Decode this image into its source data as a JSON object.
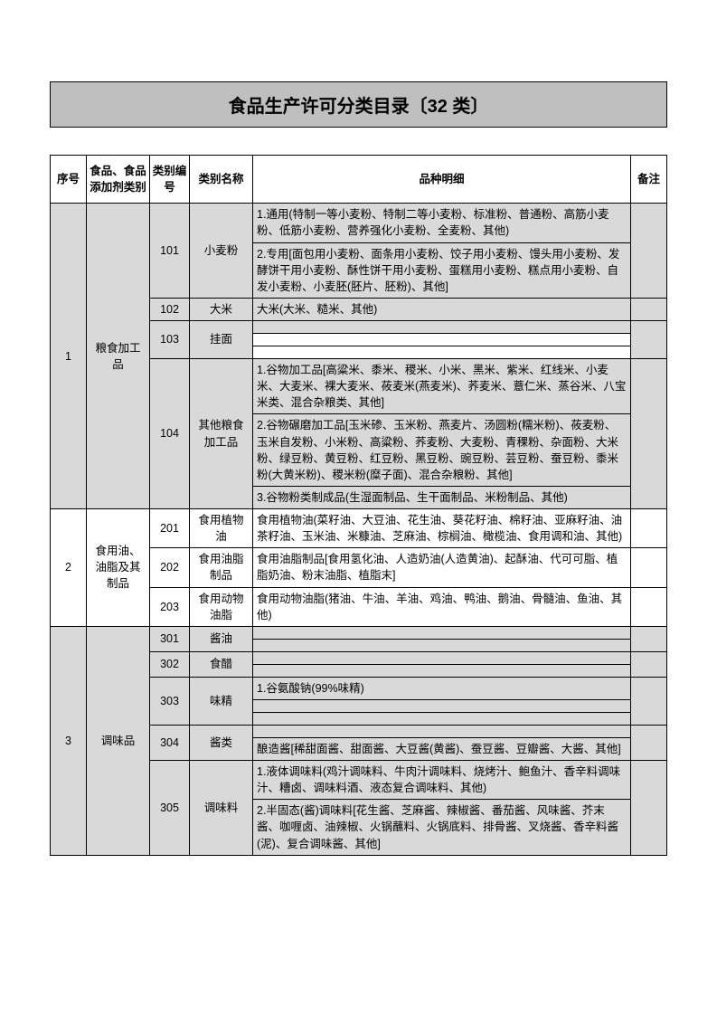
{
  "title": "食品生产许可分类目录〔32 类〕",
  "headers": {
    "seq": "序号",
    "category": "食品、食品添加剂类别",
    "code": "类别编号",
    "name": "类别名称",
    "detail": "品种明细",
    "note": "备注"
  },
  "r1": {
    "seq": "1",
    "cat": "粮食加工品",
    "c101": "101",
    "n101": "小麦粉",
    "d101a": "1.通用(特制一等小麦粉、特制二等小麦粉、标准粉、普通粉、高筋小麦粉、低筋小麦粉、营养强化小麦粉、全麦粉、其他)",
    "d101b": "2.专用[面包用小麦粉、面条用小麦粉、饺子用小麦粉、馒头用小麦粉、发酵饼干用小麦粉、酥性饼干用小麦粉、蛋糕用小麦粉、糕点用小麦粉、自发小麦粉、小麦胚(胚片、胚粉)、其他]",
    "c102": "102",
    "n102": "大米",
    "d102": "大米(大米、糙米、其他)",
    "c103": "103",
    "n103": "挂面",
    "c104": "104",
    "n104": "其他粮食加工品",
    "d104a": "1.谷物加工品[高粱米、黍米、稷米、小米、黑米、紫米、红线米、小麦米、大麦米、裸大麦米、莜麦米(燕麦米)、荞麦米、薏仁米、蒸谷米、八宝米类、混合杂粮类、其他]",
    "d104b": "2.谷物碾磨加工品[玉米碜、玉米粉、燕麦片、汤圆粉(糯米粉)、莜麦粉、玉米自发粉、小米粉、高粱粉、荞麦粉、大麦粉、青稞粉、杂面粉、大米粉、绿豆粉、黄豆粉、红豆粉、黑豆粉、豌豆粉、芸豆粉、蚕豆粉、黍米粉(大黄米粉)、稷米粉(糜子面)、混合杂粮粉、其他]",
    "d104c": "3.谷物粉类制成品(生湿面制品、生干面制品、米粉制品、其他)"
  },
  "r2": {
    "seq": "2",
    "cat": "食用油、油脂及其制品",
    "c201": "201",
    "n201": "食用植物油",
    "d201": "食用植物油(菜籽油、大豆油、花生油、葵花籽油、棉籽油、亚麻籽油、油茶籽油、玉米油、米糠油、芝麻油、棕榈油、橄榄油、食用调和油、其他)",
    "c202": "202",
    "n202": "食用油脂制品",
    "d202": "食用油脂制品[食用氢化油、人造奶油(人造黄油)、起酥油、代可可脂、植脂奶油、粉末油脂、植脂末]",
    "c203": "203",
    "n203": "食用动物油脂",
    "d203": "食用动物油脂(猪油、牛油、羊油、鸡油、鸭油、鹅油、骨髓油、鱼油、其他)"
  },
  "r3": {
    "seq": "3",
    "cat": "调味品",
    "c301": "301",
    "n301": "酱油",
    "c302": "302",
    "n302": "食醋",
    "c303": "303",
    "n303": "味精",
    "d303": "1.谷氨酸钠(99%味精)",
    "c304": "304",
    "n304": "酱类",
    "d304": "酿造酱[稀甜面酱、甜面酱、大豆酱(黄酱)、蚕豆酱、豆瓣酱、大酱、其他]",
    "c305": "305",
    "n305": "调味料",
    "d305a": "1.液体调味料(鸡汁调味料、牛肉汁调味料、烧烤汁、鲍鱼汁、香辛料调味汁、糟卤、调味料酒、液态复合调味料、其他)",
    "d305b": "2.半固态(酱)调味料[花生酱、芝麻酱、辣椒酱、番茄酱、风味酱、芥末酱、咖喱卤、油辣椒、火锅蘸料、火锅底料、排骨酱、叉烧酱、香辛料酱(泥)、复合调味酱、其他]"
  },
  "colors": {
    "title_bg": "#bfbfbf",
    "row_grey": "#d9d9d9",
    "border": "#000000",
    "bg": "#ffffff"
  }
}
